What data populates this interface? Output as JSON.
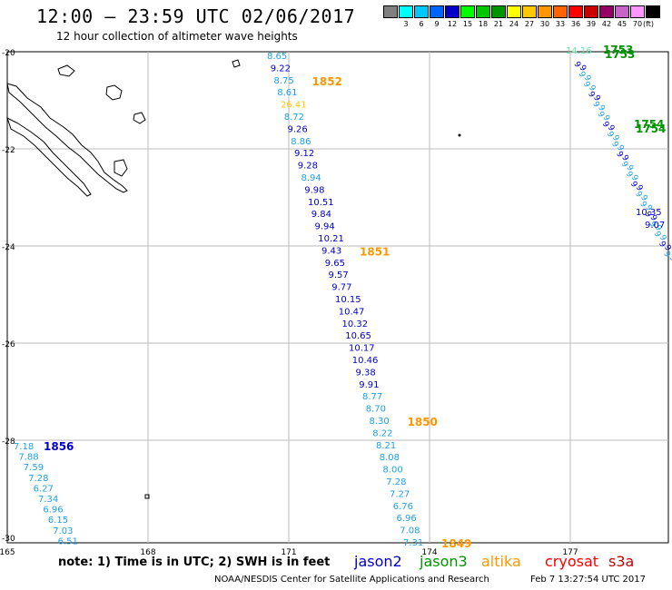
{
  "header": {
    "title": "12:00 – 23:59 UTC 02/06/2017",
    "subtitle": "12 hour collection of altimeter wave heights"
  },
  "scale": {
    "unit": "(ft)",
    "swatches": [
      {
        "color": "#808080",
        "label": ""
      },
      {
        "color": "#00ffff",
        "label": "3"
      },
      {
        "color": "#00c8ff",
        "label": "6"
      },
      {
        "color": "#0064ff",
        "label": "9"
      },
      {
        "color": "#0000c8",
        "label": "12"
      },
      {
        "color": "#00ff00",
        "label": "15"
      },
      {
        "color": "#00c800",
        "label": "18"
      },
      {
        "color": "#009600",
        "label": "21"
      },
      {
        "color": "#ffff00",
        "label": "24"
      },
      {
        "color": "#ffc800",
        "label": "27"
      },
      {
        "color": "#ff9600",
        "label": "30"
      },
      {
        "color": "#ff6400",
        "label": "33"
      },
      {
        "color": "#ff0000",
        "label": "36"
      },
      {
        "color": "#c80000",
        "label": "39"
      },
      {
        "color": "#960064",
        "label": "42"
      },
      {
        "color": "#c864c8",
        "label": "45"
      },
      {
        "color": "#ff96ff",
        "label": "70"
      },
      {
        "color": "#000000",
        "label": ""
      }
    ]
  },
  "map": {
    "lon_ticks": [
      "165",
      "168",
      "171",
      "174",
      "177"
    ],
    "lat_ticks": [
      "-20",
      "-22",
      "-24",
      "-26",
      "-28",
      "-30"
    ],
    "gridline_color": "#bbbbbb",
    "track_center": [
      {
        "value": "8.65",
        "color": "#1ea0e6"
      },
      {
        "value": "9.22",
        "color": "#0000c8"
      },
      {
        "value": "8.75",
        "color": "#1ea0e6"
      },
      {
        "value": "8.61",
        "color": "#1ea0e6"
      },
      {
        "value": "26.41",
        "color": "#ffc800"
      },
      {
        "value": "8.72",
        "color": "#1ea0e6"
      },
      {
        "value": "9.26",
        "color": "#0000c8"
      },
      {
        "value": "8.86",
        "color": "#1ea0e6"
      },
      {
        "value": "9.12",
        "color": "#0000c8"
      },
      {
        "value": "9.28",
        "color": "#0000c8"
      },
      {
        "value": "8.94",
        "color": "#1ea0e6"
      },
      {
        "value": "9.98",
        "color": "#0000c8"
      },
      {
        "value": "10.51",
        "color": "#0000c8"
      },
      {
        "value": "9.84",
        "color": "#0000c8"
      },
      {
        "value": "9.94",
        "color": "#0000c8"
      },
      {
        "value": "10.21",
        "color": "#0000c8"
      },
      {
        "value": "9.43",
        "color": "#0000c8"
      },
      {
        "value": "9.65",
        "color": "#0000c8"
      },
      {
        "value": "9.57",
        "color": "#0000c8"
      },
      {
        "value": "9.77",
        "color": "#0000c8"
      },
      {
        "value": "10.15",
        "color": "#0000c8"
      },
      {
        "value": "10.47",
        "color": "#0000c8"
      },
      {
        "value": "10.32",
        "color": "#0000c8"
      },
      {
        "value": "10.65",
        "color": "#0000c8"
      },
      {
        "value": "10.17",
        "color": "#0000c8"
      },
      {
        "value": "10.46",
        "color": "#0000c8"
      },
      {
        "value": "9.38",
        "color": "#0000c8"
      },
      {
        "value": "9.91",
        "color": "#0000c8"
      },
      {
        "value": "8.77",
        "color": "#1ea0e6"
      },
      {
        "value": "8.70",
        "color": "#1ea0e6"
      },
      {
        "value": "8.30",
        "color": "#1ea0e6"
      },
      {
        "value": "8.22",
        "color": "#1ea0e6"
      },
      {
        "value": "8.21",
        "color": "#1ea0e6"
      },
      {
        "value": "8.08",
        "color": "#1ea0e6"
      },
      {
        "value": "8.00",
        "color": "#1ea0e6"
      },
      {
        "value": "7.28",
        "color": "#1ea0e6"
      },
      {
        "value": "7.27",
        "color": "#1ea0e6"
      },
      {
        "value": "6.76",
        "color": "#1ea0e6"
      },
      {
        "value": "6.96",
        "color": "#1ea0e6"
      },
      {
        "value": "7.08",
        "color": "#1ea0e6"
      },
      {
        "value": "7.31",
        "color": "#1ea0e6"
      }
    ],
    "track_center_times": [
      {
        "text": "1852",
        "color": "#ff9600",
        "row": 2
      },
      {
        "text": "1851",
        "color": "#ff9600",
        "row": 16
      },
      {
        "text": "1850",
        "color": "#ff9600",
        "row": 30
      },
      {
        "text": "1849",
        "color": "#ff9600",
        "row": 40
      }
    ],
    "track_left": [
      {
        "value": "7.18",
        "color": "#1ea0e6"
      },
      {
        "value": "7.88",
        "color": "#1ea0e6"
      },
      {
        "value": "7.59",
        "color": "#1ea0e6"
      },
      {
        "value": "7.28",
        "color": "#1ea0e6"
      },
      {
        "value": "6.27",
        "color": "#1ea0e6"
      },
      {
        "value": "7.34",
        "color": "#1ea0e6"
      },
      {
        "value": "6.96",
        "color": "#1ea0e6"
      },
      {
        "value": "6.15",
        "color": "#1ea0e6"
      },
      {
        "value": "7.03",
        "color": "#1ea0e6"
      },
      {
        "value": "6.51",
        "color": "#1ea0e6"
      }
    ],
    "track_left_time": {
      "text": "1856",
      "color": "#0000c8"
    },
    "track_right": {
      "start_value": "14.16",
      "start_color": "#64e6a0",
      "visible_value_1": "10.35",
      "visible_value_2": "9.07",
      "time_1": "1753",
      "time_2": "1754",
      "time_color": "#009600"
    }
  },
  "footer": {
    "note": "note:  1) Time is in UTC;  2) SWH is in feet",
    "legend": [
      {
        "name": "jason2",
        "color": "#0000c8"
      },
      {
        "name": "jason3",
        "color": "#009600"
      },
      {
        "name": "altika",
        "color": "#ff9600"
      },
      {
        "name": "cryosat",
        "color": "#ff0000"
      },
      {
        "name": "s3a",
        "color": "#c80000"
      }
    ],
    "credit": "NOAA/NESDIS Center for Satellite Applications and Research",
    "timestamp": "Feb  7 13:27:54 UTC 2017"
  }
}
